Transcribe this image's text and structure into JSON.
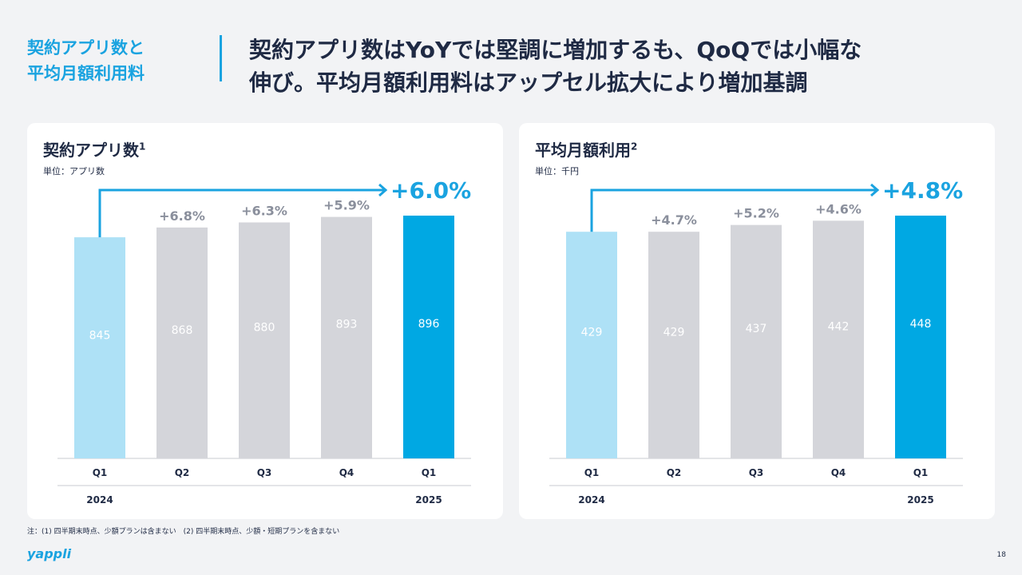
{
  "header": {
    "section_line1": "契約アプリ数と",
    "section_line2": "平均月額利用料",
    "headline_line1": "契約アプリ数はYoYでは堅調に増加するも、QoQでは小幅な",
    "headline_line2": "伸び。平均月額利用料はアップセル拡大により増加基調"
  },
  "colors": {
    "accent": "#1aa3e0",
    "bar_light": "#aee1f6",
    "bar_gray": "#d4d5da",
    "bar_current": "#00a8e3",
    "text_dark": "#1f2a44",
    "growth_gray": "#8a8f9c"
  },
  "chart_data": [
    {
      "type": "bar",
      "title": "契約アプリ数",
      "title_sup": "1",
      "unit": "単位：アプリ数",
      "categories": [
        "Q1",
        "Q2",
        "Q3",
        "Q4",
        "Q1"
      ],
      "years": [
        "2024",
        "",
        "",
        "",
        "2025"
      ],
      "values": [
        845,
        868,
        880,
        893,
        896
      ],
      "value_labels": [
        "845",
        "868",
        "880",
        "893",
        "896"
      ],
      "qoq_labels": [
        "",
        "+6.8%",
        "+6.3%",
        "+5.9%",
        ""
      ],
      "yoy_label": "+6.0%",
      "bar_styles": [
        "light",
        "gray",
        "gray",
        "gray",
        "current"
      ]
    },
    {
      "type": "bar",
      "title": "平均月額利用",
      "title_sup": "2",
      "unit": "単位：千円",
      "categories": [
        "Q1",
        "Q2",
        "Q3",
        "Q4",
        "Q1"
      ],
      "years": [
        "2024",
        "",
        "",
        "",
        "2025"
      ],
      "values": [
        429,
        429,
        437,
        442,
        448
      ],
      "value_labels": [
        "429",
        "429",
        "437",
        "442",
        "448"
      ],
      "qoq_labels": [
        "",
        "+4.7%",
        "+5.2%",
        "+4.6%",
        ""
      ],
      "yoy_label": "+4.8%",
      "bar_styles": [
        "light",
        "gray",
        "gray",
        "gray",
        "current"
      ]
    }
  ],
  "footer": {
    "note": "注：(1) 四半期末時点、少額プランは含まない　(2) 四半期末時点、少額・短期プランを含まない",
    "logo": "yappli",
    "page": "18"
  }
}
